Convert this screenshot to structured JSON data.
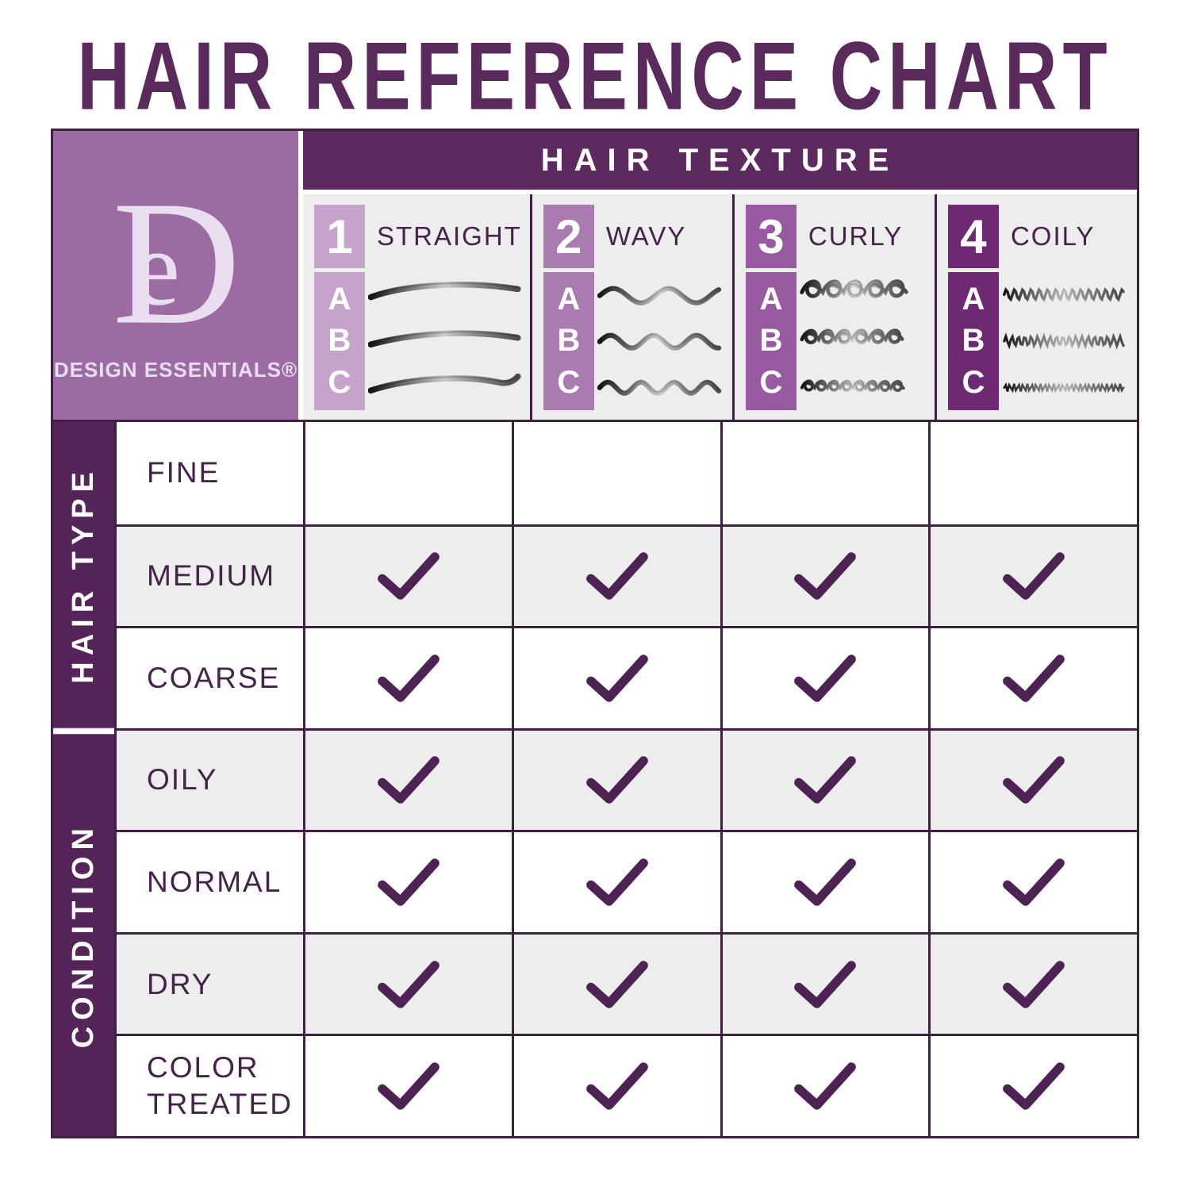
{
  "title": "HAIR REFERENCE CHART",
  "brand": {
    "monogram_d": "D",
    "monogram_e": "e",
    "name": "DESIGN ESSENTIALS®"
  },
  "texture_header": "HAIR TEXTURE",
  "textures": [
    {
      "number": "1",
      "label": "STRAIGHT",
      "subtypes": [
        "A",
        "B",
        "C"
      ],
      "color": "#c5a3ca",
      "pattern": "straight"
    },
    {
      "number": "2",
      "label": "WAVY",
      "subtypes": [
        "A",
        "B",
        "C"
      ],
      "color": "#a97bb0",
      "pattern": "wavy"
    },
    {
      "number": "3",
      "label": "CURLY",
      "subtypes": [
        "A",
        "B",
        "C"
      ],
      "color": "#97599f",
      "pattern": "curly"
    },
    {
      "number": "4",
      "label": "COILY",
      "subtypes": [
        "A",
        "B",
        "C"
      ],
      "color": "#6d2a72",
      "pattern": "coily"
    }
  ],
  "row_groups": [
    {
      "label": "HAIR TYPE",
      "rows": [
        {
          "label": "FINE",
          "checks": [
            false,
            false,
            false,
            false
          ]
        },
        {
          "label": "MEDIUM",
          "checks": [
            true,
            true,
            true,
            true
          ]
        },
        {
          "label": "COARSE",
          "checks": [
            true,
            true,
            true,
            true
          ]
        }
      ]
    },
    {
      "label": "CONDITION",
      "rows": [
        {
          "label": "OILY",
          "checks": [
            true,
            true,
            true,
            true
          ]
        },
        {
          "label": "NORMAL",
          "checks": [
            true,
            true,
            true,
            true
          ]
        },
        {
          "label": "DRY",
          "checks": [
            true,
            true,
            true,
            true
          ]
        },
        {
          "label": "COLOR TREATED",
          "checks": [
            true,
            true,
            true,
            true
          ]
        }
      ]
    }
  ],
  "colors": {
    "title_purple": "#5a2a5d",
    "header_bar_purple": "#5d2a60",
    "side_bar_purple": "#552458",
    "grid_line": "#3f2043",
    "label_text": "#45224a",
    "checkmark": "#4d2353",
    "shaded_cell": "#eeedee",
    "logo_background": "#9c6ba4",
    "logo_foreground": "#e9def0"
  },
  "chart_data": {
    "type": "table",
    "title": "HAIR REFERENCE CHART",
    "column_group_header": "HAIR TEXTURE",
    "columns": [
      "1 STRAIGHT (A,B,C)",
      "2 WAVY (A,B,C)",
      "3 CURLY (A,B,C)",
      "4 COILY (A,B,C)"
    ],
    "row_groups": [
      {
        "group": "HAIR TYPE",
        "rows": [
          "FINE",
          "MEDIUM",
          "COARSE"
        ]
      },
      {
        "group": "CONDITION",
        "rows": [
          "OILY",
          "NORMAL",
          "DRY",
          "COLOR TREATED"
        ]
      }
    ],
    "cells": [
      {
        "row": "FINE",
        "values": [
          false,
          false,
          false,
          false
        ]
      },
      {
        "row": "MEDIUM",
        "values": [
          true,
          true,
          true,
          true
        ]
      },
      {
        "row": "COARSE",
        "values": [
          true,
          true,
          true,
          true
        ]
      },
      {
        "row": "OILY",
        "values": [
          true,
          true,
          true,
          true
        ]
      },
      {
        "row": "NORMAL",
        "values": [
          true,
          true,
          true,
          true
        ]
      },
      {
        "row": "DRY",
        "values": [
          true,
          true,
          true,
          true
        ]
      },
      {
        "row": "COLOR TREATED",
        "values": [
          true,
          true,
          true,
          true
        ]
      }
    ],
    "check_symbol": "✓",
    "legend_position": "none",
    "grid": true
  }
}
